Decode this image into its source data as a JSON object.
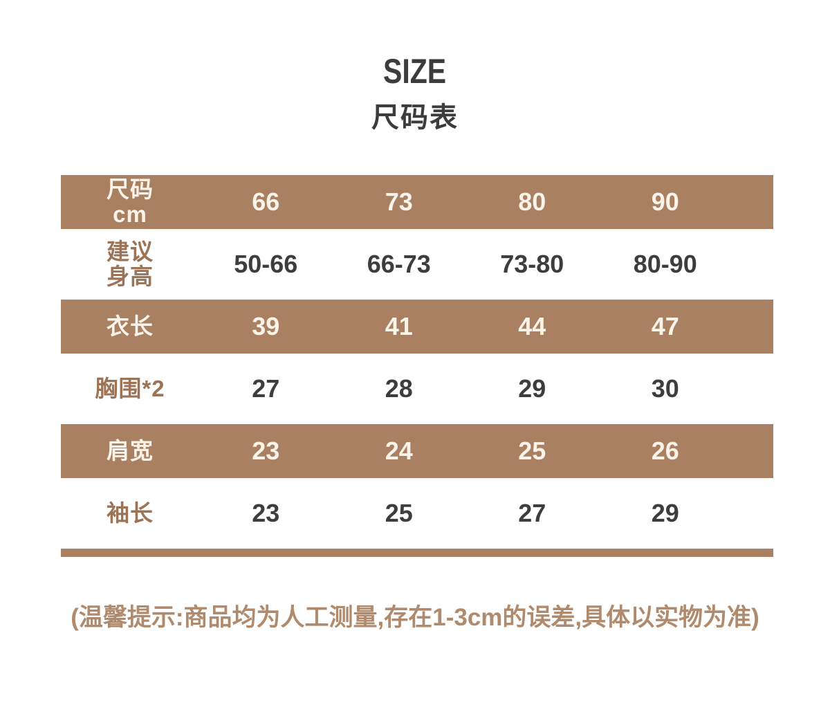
{
  "title": {
    "main": "SIZE",
    "subtitle": "尺码表"
  },
  "colors": {
    "brown": "#aa8063",
    "cream": "#f9f3e9",
    "label-brown": "#9b7356",
    "value-dark": "#3d3d3d",
    "title-dark": "#3c3c3c",
    "footer-brown": "#b08a6c"
  },
  "chart_data": {
    "type": "table",
    "title": "SIZE 尺码表",
    "unit": "cm",
    "header": {
      "label": [
        "尺码",
        "cm"
      ],
      "values": [
        "66",
        "73",
        "80",
        "90"
      ]
    },
    "rows": [
      {
        "band": "light",
        "label": [
          "建议",
          "身高"
        ],
        "values": [
          "50-66",
          "66-73",
          "73-80",
          "80-90"
        ]
      },
      {
        "band": "brown",
        "label": [
          "衣长"
        ],
        "values": [
          "39",
          "41",
          "44",
          "47"
        ]
      },
      {
        "band": "light",
        "label": [
          "胸围*2"
        ],
        "values": [
          "27",
          "28",
          "29",
          "30"
        ]
      },
      {
        "band": "brown",
        "label": [
          "肩宽"
        ],
        "values": [
          "23",
          "24",
          "25",
          "26"
        ]
      },
      {
        "band": "light",
        "label": [
          "袖长"
        ],
        "values": [
          "23",
          "25",
          "27",
          "29"
        ]
      }
    ]
  },
  "footer": {
    "note": "(温馨提示:商品均为人工测量,存在1-3cm的误差,具体以实物为准)"
  }
}
